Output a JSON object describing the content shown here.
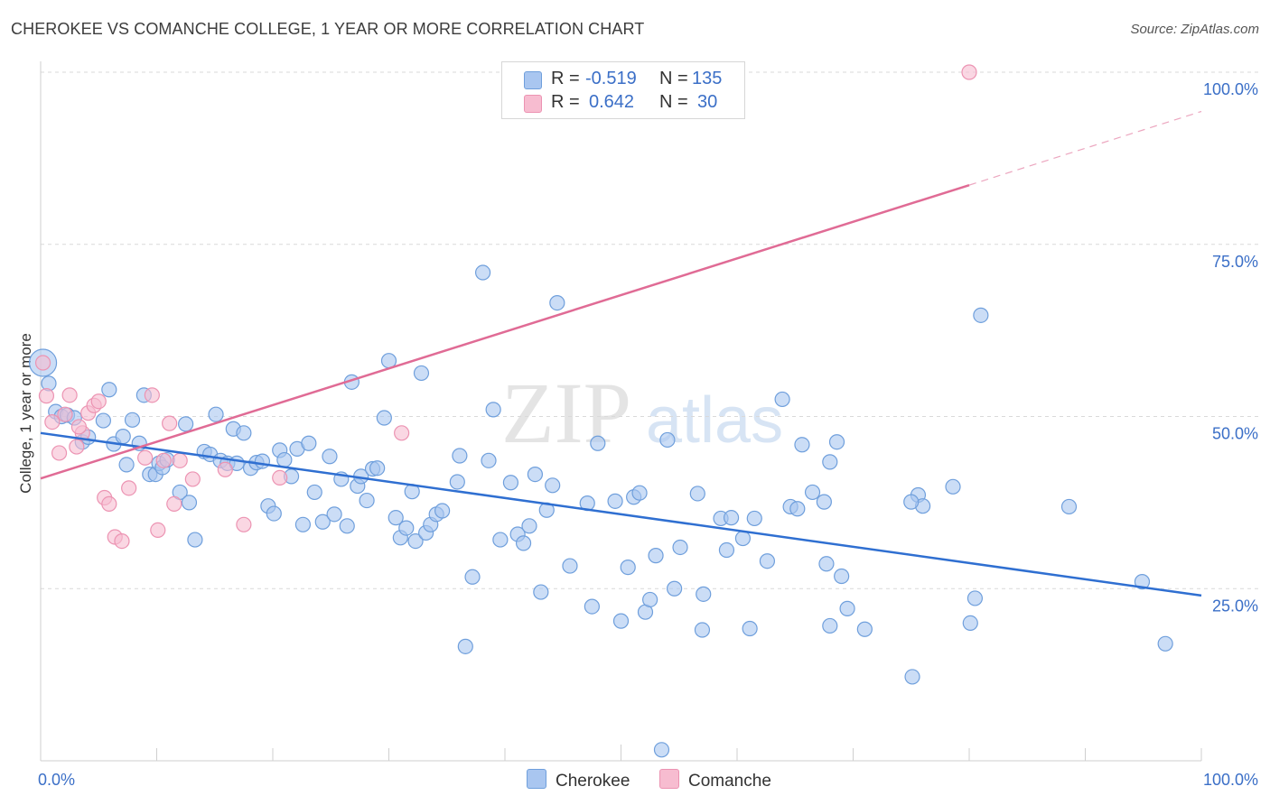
{
  "title": "CHEROKEE VS COMANCHE COLLEGE, 1 YEAR OR MORE CORRELATION CHART",
  "source": "Source: ZipAtlas.com",
  "watermark": {
    "zip": "ZIP",
    "atlas": "atlas"
  },
  "legend": {
    "rows": [
      {
        "r_label": "R =",
        "r_value": "-0.519",
        "n_label": "N =",
        "n_value": "135"
      },
      {
        "r_label": "R =",
        "r_value": "0.642",
        "n_label": "N =",
        "n_value": "30"
      }
    ]
  },
  "colors": {
    "cherokee_fill": "#a9c6f0",
    "cherokee_stroke": "#6f9fdc",
    "cherokee_line": "#2f6fd1",
    "comanche_fill": "#f7bcd0",
    "comanche_stroke": "#ec93b2",
    "comanche_line": "#e06b95",
    "tick_label": "#3b6fc7",
    "grid": "#d9d9d9"
  },
  "chart_data": {
    "type": "scatter",
    "title": "CHEROKEE VS COMANCHE COLLEGE, 1 YEAR OR MORE CORRELATION CHART",
    "xlabel": "",
    "ylabel": "College, 1 year or more",
    "xlim": [
      0,
      100
    ],
    "ylim": [
      0,
      100
    ],
    "x_tick_labels": [
      "0.0%",
      "100.0%"
    ],
    "y_ticks": [
      25,
      50,
      75,
      100
    ],
    "y_tick_labels": [
      "25.0%",
      "50.0%",
      "75.0%",
      "100.0%"
    ],
    "legend_entries": [
      "Cherokee",
      "Comanche"
    ],
    "series": [
      {
        "name": "Cherokee",
        "r": -0.519,
        "n": 135,
        "trend": {
          "x0": 0,
          "y0": 47.6,
          "x1": 100,
          "y1": 24.0
        },
        "points": [
          [
            0.2,
            57.8
          ],
          [
            0.7,
            54.8
          ],
          [
            1.3,
            50.7
          ],
          [
            1.8,
            50.0
          ],
          [
            2.3,
            50.2
          ],
          [
            2.9,
            49.8
          ],
          [
            3.6,
            46.3
          ],
          [
            4.1,
            47.0
          ],
          [
            5.4,
            49.4
          ],
          [
            5.9,
            53.9
          ],
          [
            6.3,
            46.0
          ],
          [
            7.1,
            47.1
          ],
          [
            7.4,
            43.0
          ],
          [
            7.9,
            49.5
          ],
          [
            8.5,
            46.1
          ],
          [
            8.9,
            53.1
          ],
          [
            9.4,
            41.6
          ],
          [
            9.9,
            41.6
          ],
          [
            10.2,
            43.2
          ],
          [
            10.5,
            42.6
          ],
          [
            10.9,
            43.7
          ],
          [
            12.0,
            39.0
          ],
          [
            12.5,
            48.9
          ],
          [
            12.8,
            37.5
          ],
          [
            13.3,
            32.1
          ],
          [
            14.1,
            44.9
          ],
          [
            14.6,
            44.5
          ],
          [
            15.1,
            50.3
          ],
          [
            15.5,
            43.6
          ],
          [
            16.1,
            43.2
          ],
          [
            16.6,
            48.2
          ],
          [
            16.9,
            43.2
          ],
          [
            17.5,
            47.6
          ],
          [
            18.1,
            42.5
          ],
          [
            18.6,
            43.3
          ],
          [
            19.1,
            43.5
          ],
          [
            19.6,
            37.0
          ],
          [
            20.1,
            35.9
          ],
          [
            20.6,
            45.1
          ],
          [
            21.0,
            43.7
          ],
          [
            21.6,
            41.3
          ],
          [
            22.1,
            45.3
          ],
          [
            22.6,
            34.3
          ],
          [
            23.1,
            46.1
          ],
          [
            23.6,
            39.0
          ],
          [
            24.3,
            34.7
          ],
          [
            24.9,
            44.2
          ],
          [
            25.3,
            35.8
          ],
          [
            25.9,
            40.9
          ],
          [
            26.4,
            34.1
          ],
          [
            26.8,
            55.0
          ],
          [
            27.3,
            39.9
          ],
          [
            27.6,
            41.3
          ],
          [
            28.1,
            37.8
          ],
          [
            28.6,
            42.4
          ],
          [
            29.0,
            42.5
          ],
          [
            29.6,
            49.8
          ],
          [
            30.0,
            58.1
          ],
          [
            30.6,
            35.3
          ],
          [
            31.0,
            32.4
          ],
          [
            31.5,
            33.8
          ],
          [
            32.0,
            39.1
          ],
          [
            32.3,
            31.9
          ],
          [
            32.8,
            56.3
          ],
          [
            33.2,
            33.1
          ],
          [
            33.6,
            34.3
          ],
          [
            34.1,
            35.8
          ],
          [
            34.6,
            36.3
          ],
          [
            35.9,
            40.5
          ],
          [
            36.1,
            44.3
          ],
          [
            36.6,
            16.6
          ],
          [
            37.2,
            26.7
          ],
          [
            38.1,
            70.9
          ],
          [
            38.6,
            43.6
          ],
          [
            39.0,
            51.0
          ],
          [
            39.6,
            32.1
          ],
          [
            40.5,
            40.4
          ],
          [
            41.1,
            32.9
          ],
          [
            41.6,
            31.6
          ],
          [
            42.1,
            34.1
          ],
          [
            42.6,
            41.6
          ],
          [
            43.1,
            24.5
          ],
          [
            43.6,
            36.4
          ],
          [
            44.1,
            40.0
          ],
          [
            44.5,
            66.5
          ],
          [
            45.6,
            28.3
          ],
          [
            47.1,
            37.4
          ],
          [
            47.5,
            22.4
          ],
          [
            48.0,
            46.1
          ],
          [
            49.5,
            37.7
          ],
          [
            50.0,
            20.3
          ],
          [
            50.6,
            28.1
          ],
          [
            51.1,
            38.3
          ],
          [
            51.6,
            38.9
          ],
          [
            52.1,
            21.6
          ],
          [
            52.5,
            23.4
          ],
          [
            53.0,
            29.8
          ],
          [
            53.5,
            1.6
          ],
          [
            54.0,
            46.6
          ],
          [
            54.6,
            25.0
          ],
          [
            55.1,
            31.0
          ],
          [
            56.6,
            38.8
          ],
          [
            57.1,
            24.2
          ],
          [
            58.6,
            35.2
          ],
          [
            59.1,
            30.6
          ],
          [
            59.5,
            35.3
          ],
          [
            60.5,
            32.3
          ],
          [
            61.1,
            19.2
          ],
          [
            61.5,
            35.2
          ],
          [
            62.6,
            29.0
          ],
          [
            63.9,
            52.5
          ],
          [
            64.6,
            36.9
          ],
          [
            65.2,
            36.6
          ],
          [
            65.6,
            45.9
          ],
          [
            66.5,
            39.0
          ],
          [
            67.5,
            37.6
          ],
          [
            68.0,
            43.4
          ],
          [
            68.6,
            46.3
          ],
          [
            69.0,
            26.8
          ],
          [
            69.5,
            22.1
          ],
          [
            71.0,
            19.1
          ],
          [
            75.1,
            12.2
          ],
          [
            75.6,
            38.6
          ],
          [
            76.0,
            37.0
          ],
          [
            78.6,
            39.8
          ],
          [
            80.1,
            20.0
          ],
          [
            80.5,
            23.6
          ],
          [
            81.0,
            64.7
          ],
          [
            88.6,
            36.9
          ],
          [
            96.9,
            17.0
          ],
          [
            94.9,
            26.0
          ],
          [
            75.0,
            37.6
          ],
          [
            67.7,
            28.6
          ],
          [
            57.0,
            19.0
          ],
          [
            68.0,
            19.6
          ]
        ]
      },
      {
        "name": "Comanche",
        "r": 0.642,
        "n": 30,
        "trend": {
          "x0": 0,
          "y0": 41.0,
          "x1": 80,
          "y1": 83.6,
          "dashed_to_x": 100,
          "dashed_to_y": 94.3
        },
        "points": [
          [
            0.2,
            57.8
          ],
          [
            0.5,
            53.0
          ],
          [
            1.0,
            49.2
          ],
          [
            1.6,
            44.7
          ],
          [
            2.1,
            50.3
          ],
          [
            2.5,
            53.1
          ],
          [
            3.1,
            45.6
          ],
          [
            3.6,
            47.6
          ],
          [
            4.1,
            50.5
          ],
          [
            4.6,
            51.6
          ],
          [
            5.0,
            52.2
          ],
          [
            5.5,
            38.2
          ],
          [
            5.9,
            37.3
          ],
          [
            6.4,
            32.5
          ],
          [
            7.0,
            31.9
          ],
          [
            7.6,
            39.6
          ],
          [
            9.6,
            53.1
          ],
          [
            10.1,
            33.5
          ],
          [
            10.6,
            43.6
          ],
          [
            11.1,
            49.0
          ],
          [
            11.5,
            37.3
          ],
          [
            12.0,
            43.6
          ],
          [
            13.1,
            40.9
          ],
          [
            15.9,
            42.3
          ],
          [
            17.5,
            34.3
          ],
          [
            20.6,
            41.1
          ],
          [
            31.1,
            47.6
          ],
          [
            80.0,
            100.0
          ],
          [
            3.3,
            48.5
          ],
          [
            9.0,
            44.0
          ]
        ]
      }
    ]
  }
}
